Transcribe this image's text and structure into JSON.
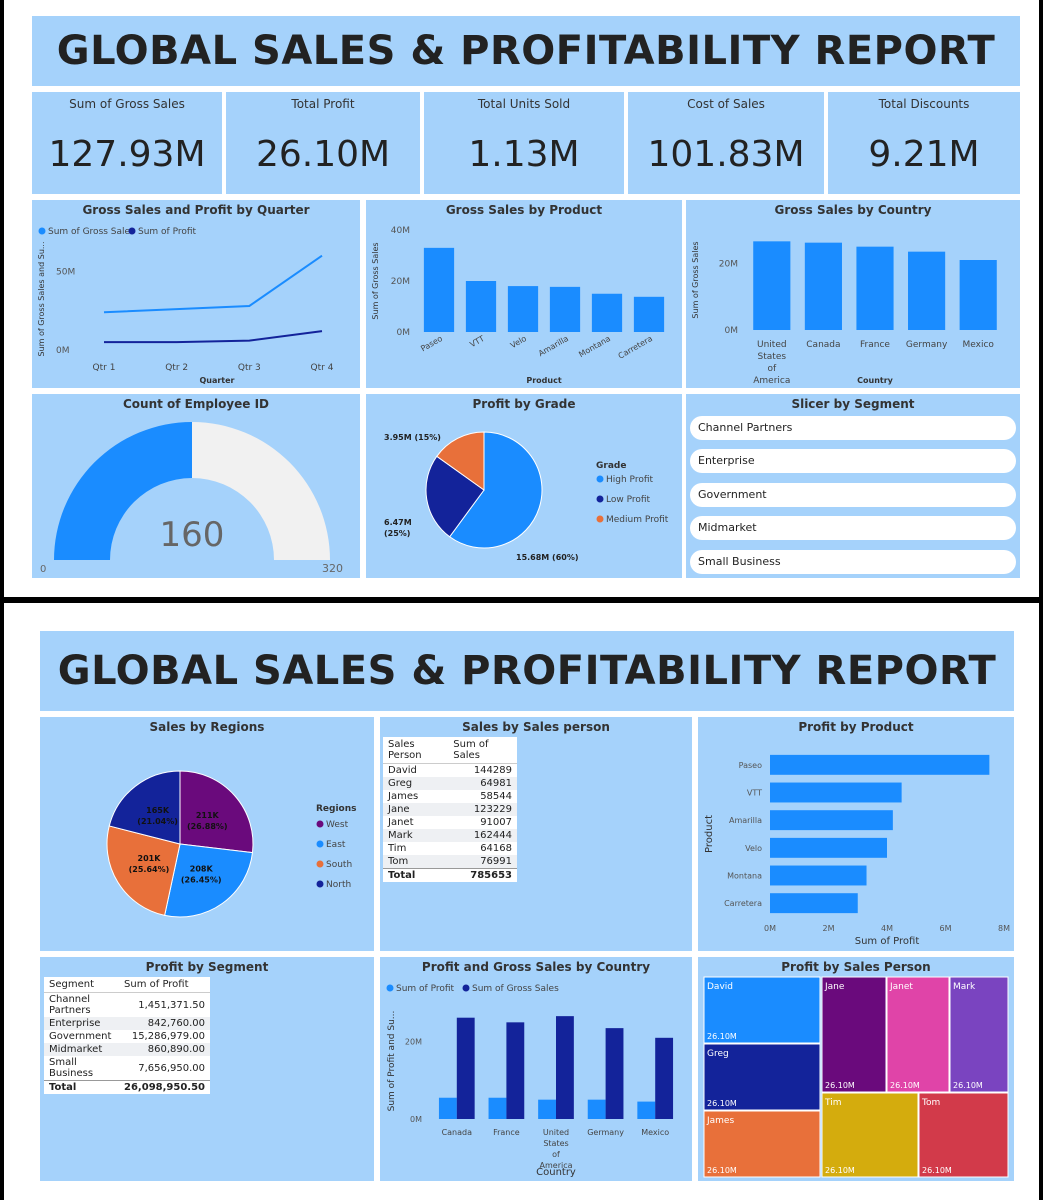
{
  "report_title": "GLOBAL SALES & PROFITABILITY REPORT",
  "kpis": [
    {
      "label": "Sum of Gross Sales",
      "value": "127.93M"
    },
    {
      "label": "Total Profit",
      "value": "26.10M"
    },
    {
      "label": "Total Units Sold",
      "value": "1.13M"
    },
    {
      "label": "Cost of Sales",
      "value": "101.83M"
    },
    {
      "label": "Total Discounts",
      "value": "9.21M"
    }
  ],
  "gauge": {
    "title": "Count of Employee ID",
    "value": 160,
    "value_label": "160",
    "min_label": "0",
    "max_label": "320",
    "max": 320
  },
  "slicer": {
    "title": "Slicer by Segment",
    "items": [
      "Channel Partners",
      "Enterprise",
      "Government",
      "Midmarket",
      "Small Business"
    ]
  },
  "colors": {
    "panel": "#a5d2fb",
    "blue": "#1a8cff",
    "navy": "#13239a",
    "orange": "#e8703a",
    "purple": "#6a0a7c"
  },
  "sales_by_person_table": {
    "title": "Sales by Sales person",
    "headers": [
      "Sales Person",
      "Sum of Sales"
    ],
    "rows": [
      [
        "David",
        "144289"
      ],
      [
        "Greg",
        "64981"
      ],
      [
        "James",
        "58544"
      ],
      [
        "Jane",
        "123229"
      ],
      [
        "Janet",
        "91007"
      ],
      [
        "Mark",
        "162444"
      ],
      [
        "Tim",
        "64168"
      ],
      [
        "Tom",
        "76991"
      ]
    ],
    "total": [
      "Total",
      "785653"
    ]
  },
  "profit_by_segment_table": {
    "title": "Profit by Segment",
    "headers": [
      "Segment",
      "Sum of Profit"
    ],
    "rows": [
      [
        "Channel Partners",
        "1,451,371.50"
      ],
      [
        "Enterprise",
        "842,760.00"
      ],
      [
        "Government",
        "15,286,979.00"
      ],
      [
        "Midmarket",
        "860,890.00"
      ],
      [
        "Small Business",
        "7,656,950.00"
      ]
    ],
    "total": [
      "Total",
      "26,098,950.50"
    ]
  },
  "chart_data": [
    {
      "id": "quarter",
      "type": "line",
      "title": "Gross Sales and Profit by Quarter",
      "categories": [
        "Qtr 1",
        "Qtr 2",
        "Qtr 3",
        "Qtr 4"
      ],
      "series": [
        {
          "name": "Sum of Gross Sales",
          "color": "#1a8cff",
          "values": [
            24,
            26,
            28,
            60
          ]
        },
        {
          "name": "Sum of Profit",
          "color": "#13239a",
          "values": [
            5,
            5,
            6,
            12
          ]
        }
      ],
      "xlabel": "Quarter",
      "ylabel": "Sum of Gross Sales and Su...",
      "yticks": [
        {
          "v": 0,
          "label": "0M"
        },
        {
          "v": 50,
          "label": "50M"
        }
      ],
      "ylim": [
        0,
        70
      ]
    },
    {
      "id": "product",
      "type": "bar",
      "title": "Gross Sales by Product",
      "categories": [
        "Paseo",
        "VTT",
        "Velo",
        "Amarilla",
        "Montana",
        "Carretera"
      ],
      "values": [
        33,
        20,
        18,
        17.7,
        15,
        13.8
      ],
      "xlabel": "Product",
      "ylabel": "Sum of Gross Sales",
      "yticks": [
        {
          "v": 0,
          "label": "0M"
        },
        {
          "v": 20,
          "label": "20M"
        },
        {
          "v": 40,
          "label": "40M"
        }
      ],
      "ylim": [
        0,
        40
      ]
    },
    {
      "id": "country",
      "type": "bar",
      "title": "Gross Sales by Country",
      "categories": [
        "United States of America",
        "Canada",
        "France",
        "Germany",
        "Mexico"
      ],
      "values": [
        26.6,
        26.2,
        25,
        23.5,
        21
      ],
      "xlabel": "Country",
      "ylabel": "Sum of Gross Sales",
      "yticks": [
        {
          "v": 0,
          "label": "0M"
        },
        {
          "v": 20,
          "label": "20M"
        }
      ],
      "ylim": [
        0,
        30
      ]
    },
    {
      "id": "grade",
      "type": "pie",
      "title": "Profit by Grade",
      "legend_title": "Grade",
      "slices": [
        {
          "name": "High Profit",
          "value": 15.68,
          "label": "15.68M (60%)",
          "color": "#1a8cff"
        },
        {
          "name": "Low Profit",
          "value": 6.47,
          "label": "6.47M (25%)",
          "color": "#13239a"
        },
        {
          "name": "Medium Profit",
          "value": 3.95,
          "label": "3.95M (15%)",
          "color": "#e8703a"
        }
      ]
    },
    {
      "id": "regions",
      "type": "pie",
      "title": "Sales by Regions",
      "legend_title": "Regions",
      "slices": [
        {
          "name": "West",
          "value": 211,
          "label": "211K",
          "pct": "(26.88%)",
          "color": "#6a0a7c"
        },
        {
          "name": "East",
          "value": 208,
          "label": "208K",
          "pct": "(26.45%)",
          "color": "#1a8cff"
        },
        {
          "name": "South",
          "value": 201,
          "label": "201K",
          "pct": "(25.64%)",
          "color": "#e8703a"
        },
        {
          "name": "North",
          "value": 165,
          "label": "165K",
          "pct": "(21.04%)",
          "color": "#13239a"
        }
      ]
    },
    {
      "id": "profit_product",
      "type": "bar",
      "orientation": "horizontal",
      "title": "Profit by Product",
      "categories": [
        "Paseo",
        "VTT",
        "Amarilla",
        "Velo",
        "Montana",
        "Carretera"
      ],
      "values": [
        7.5,
        4.5,
        4.2,
        4.0,
        3.3,
        3.0
      ],
      "xlabel": "Sum of Profit",
      "ylabel": "Product",
      "xticks": [
        {
          "v": 0,
          "label": "0M"
        },
        {
          "v": 2,
          "label": "2M"
        },
        {
          "v": 4,
          "label": "4M"
        },
        {
          "v": 6,
          "label": "6M"
        },
        {
          "v": 8,
          "label": "8M"
        }
      ],
      "xlim": [
        0,
        8
      ]
    },
    {
      "id": "profit_gross_country",
      "type": "bar",
      "title": "Profit and Gross Sales by Country",
      "categories": [
        "Canada",
        "France",
        "United States of America",
        "Germany",
        "Mexico"
      ],
      "series": [
        {
          "name": "Sum of Profit",
          "color": "#1a8cff",
          "values": [
            5.5,
            5.5,
            5.0,
            5.0,
            4.5
          ]
        },
        {
          "name": "Sum of Gross Sales",
          "color": "#13239a",
          "values": [
            26.2,
            25,
            26.6,
            23.5,
            21
          ]
        }
      ],
      "xlabel": "Country",
      "ylabel": "Sum of Profit and Su...",
      "yticks": [
        {
          "v": 0,
          "label": "0M"
        },
        {
          "v": 20,
          "label": "20M"
        }
      ],
      "ylim": [
        0,
        30
      ]
    },
    {
      "id": "treemap",
      "type": "treemap",
      "title": "Profit by Sales Person",
      "items": [
        {
          "name": "David",
          "value_label": "26.10M",
          "color": "#1a8cff"
        },
        {
          "name": "Greg",
          "value_label": "26.10M",
          "color": "#13239a"
        },
        {
          "name": "James",
          "value_label": "26.10M",
          "color": "#e8703a"
        },
        {
          "name": "Jane",
          "value_label": "26.10M",
          "color": "#6a0a7c"
        },
        {
          "name": "Janet",
          "value_label": "26.10M",
          "color": "#e044a8"
        },
        {
          "name": "Mark",
          "value_label": "26.10M",
          "color": "#7a44c0"
        },
        {
          "name": "Tim",
          "value_label": "26.10M",
          "color": "#d4ac0d"
        },
        {
          "name": "Tom",
          "value_label": "26.10M",
          "color": "#d23a4a"
        }
      ]
    }
  ]
}
